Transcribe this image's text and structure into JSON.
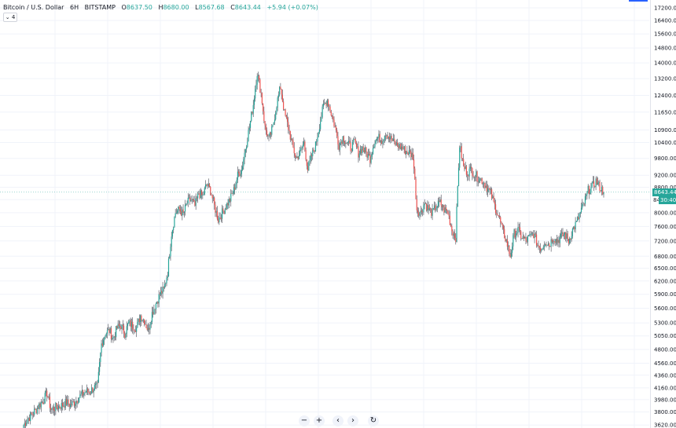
{
  "legend": {
    "symbol": "Bitcoin / U.S. Dollar",
    "interval": "6H",
    "exchange": "BITSTAMP",
    "open_label": "O",
    "open": "8637.50",
    "high_label": "H",
    "high": "8680.00",
    "low_label": "L",
    "low": "8567.68",
    "close_label": "C",
    "close": "8643.44",
    "change": "+5.94 (+0.07%)",
    "indicator_toggle": "4"
  },
  "last_price": {
    "value": "8643.44",
    "countdown": "30:40",
    "partial_label": "84"
  },
  "colors": {
    "up": "#26a69a",
    "down": "#ef5350",
    "wick": "#434651",
    "grid": "#f0f3fa",
    "axis_text": "#131722",
    "price_line": "#26a69a",
    "top_marker": "#2962ff"
  },
  "navigation": {
    "zoom_out_icon": "minus-icon",
    "zoom_in_icon": "plus-icon",
    "scroll_left_icon": "chevron-left-icon",
    "scroll_right_icon": "chevron-right-icon",
    "reset_icon": "reset-icon"
  },
  "chart_data": {
    "type": "candlestick",
    "title": "Bitcoin / U.S. Dollar",
    "interval": "6H",
    "exchange": "BITSTAMP",
    "y_axis": {
      "position": "right",
      "scale": "log",
      "ticks": [
        "3620.00",
        "3800.00",
        "3980.00",
        "4160.00",
        "4360.00",
        "4560.00",
        "4800.00",
        "5050.00",
        "5300.00",
        "5600.00",
        "5900.00",
        "6200.00",
        "6500.00",
        "6800.00",
        "7200.00",
        "7600.00",
        "8000.00",
        "8400.00",
        "8800.00",
        "9200.00",
        "9800.00",
        "10400.00",
        "10900.00",
        "11650.00",
        "12400.00",
        "13200.00",
        "14000.00",
        "14800.00",
        "15600.00",
        "16400.00",
        "17200.00"
      ],
      "ylim": [
        3580,
        17400
      ]
    },
    "grid": true,
    "close_series": [
      3620,
      3700,
      3760,
      3820,
      3900,
      3960,
      4080,
      3840,
      3860,
      3880,
      3900,
      3940,
      3900,
      3940,
      4000,
      4060,
      4100,
      4100,
      4160,
      4180,
      4900,
      5100,
      5150,
      5000,
      5200,
      5250,
      5100,
      5300,
      5250,
      5200,
      5450,
      5350,
      5150,
      5500,
      5700,
      5900,
      6000,
      6400,
      7400,
      8000,
      8100,
      7950,
      8300,
      8400,
      8200,
      8600,
      8500,
      8900,
      8700,
      8200,
      7800,
      8000,
      8200,
      8400,
      8700,
      9200,
      9400,
      10200,
      11000,
      12000,
      13500,
      12500,
      11000,
      10500,
      11000,
      12000,
      12800,
      11600,
      11000,
      10300,
      9800,
      10000,
      10400,
      9400,
      9900,
      10300,
      11100,
      11900,
      12200,
      11600,
      11000,
      10300,
      10600,
      10400,
      10200,
      10400,
      10000,
      10200,
      10000,
      9800,
      10400,
      10600,
      10500,
      10800,
      10600,
      10400,
      10300,
      10200,
      10100,
      10000,
      9900,
      8100,
      8000,
      8300,
      8100,
      8000,
      8200,
      8300,
      8100,
      8000,
      7500,
      7300,
      10300,
      9500,
      9300,
      9400,
      9200,
      9100,
      9000,
      8800,
      8600,
      8200,
      7900,
      7500,
      7200,
      6800,
      7400,
      7500,
      7300,
      7200,
      7300,
      7400,
      7100,
      7000,
      7200,
      7100,
      7300,
      7200,
      7300,
      7400,
      7200,
      7500,
      7700,
      8000,
      8300,
      8700,
      8800,
      9000,
      8800,
      8640
    ],
    "last_value": 8643.44
  }
}
